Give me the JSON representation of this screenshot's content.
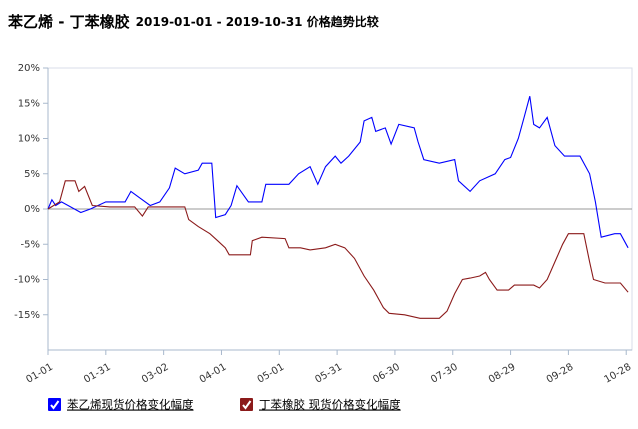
{
  "chart_data": {
    "type": "line",
    "title": "苯乙烯 - 丁苯橡胶",
    "subtitle": "2019-01-01 - 2019-10-31 价格趋势比较",
    "xlim": [
      "2019-01-01",
      "2019-10-31"
    ],
    "xticks": [
      {
        "value": "2019-01-01",
        "label": "01-01"
      },
      {
        "value": "2019-01-31",
        "label": "01-31"
      },
      {
        "value": "2019-03-02",
        "label": "03-02"
      },
      {
        "value": "2019-04-01",
        "label": "04-01"
      },
      {
        "value": "2019-05-01",
        "label": "05-01"
      },
      {
        "value": "2019-05-31",
        "label": "05-31"
      },
      {
        "value": "2019-06-30",
        "label": "06-30"
      },
      {
        "value": "2019-07-30",
        "label": "07-30"
      },
      {
        "value": "2019-08-29",
        "label": "08-29"
      },
      {
        "value": "2019-09-28",
        "label": "09-28"
      },
      {
        "value": "2019-10-28",
        "label": "10-28"
      }
    ],
    "ylim": [
      -20,
      20
    ],
    "yticks": [
      {
        "value": -15,
        "label": "-15%"
      },
      {
        "value": -10,
        "label": "-10%"
      },
      {
        "value": -5,
        "label": "-5%"
      },
      {
        "value": 0,
        "label": "0%"
      },
      {
        "value": 5,
        "label": "5%"
      },
      {
        "value": 10,
        "label": "10%"
      },
      {
        "value": 15,
        "label": "15%"
      },
      {
        "value": 20,
        "label": "20%"
      }
    ],
    "series": [
      {
        "name": "苯乙烯现货价格变化幅度",
        "color": "#0000ff",
        "x": [
          "2019-01-01",
          "2019-01-03",
          "2019-01-05",
          "2019-01-08",
          "2019-01-18",
          "2019-01-23",
          "2019-01-31",
          "2019-02-10",
          "2019-02-13",
          "2019-02-18",
          "2019-02-23",
          "2019-02-28",
          "2019-03-05",
          "2019-03-08",
          "2019-03-13",
          "2019-03-20",
          "2019-03-22",
          "2019-03-27",
          "2019-03-29",
          "2019-04-03",
          "2019-04-06",
          "2019-04-09",
          "2019-04-15",
          "2019-04-22",
          "2019-04-24",
          "2019-05-06",
          "2019-05-11",
          "2019-05-17",
          "2019-05-21",
          "2019-05-25",
          "2019-05-30",
          "2019-06-02",
          "2019-06-06",
          "2019-06-12",
          "2019-06-14",
          "2019-06-18",
          "2019-06-20",
          "2019-06-25",
          "2019-06-28",
          "2019-07-02",
          "2019-07-10",
          "2019-07-12",
          "2019-07-15",
          "2019-07-23",
          "2019-07-31",
          "2019-08-02",
          "2019-08-08",
          "2019-08-13",
          "2019-08-21",
          "2019-08-26",
          "2019-08-29",
          "2019-09-02",
          "2019-09-05",
          "2019-09-08",
          "2019-09-10",
          "2019-09-13",
          "2019-09-17",
          "2019-09-21",
          "2019-09-26",
          "2019-10-04",
          "2019-10-09",
          "2019-10-12",
          "2019-10-15",
          "2019-10-22",
          "2019-10-25",
          "2019-10-29"
        ],
        "values": [
          0,
          1.3,
          0.5,
          1.0,
          -0.5,
          0,
          1.0,
          1.0,
          2.5,
          1.5,
          0.5,
          1.0,
          3.0,
          5.8,
          5.0,
          5.5,
          6.5,
          6.5,
          -1.2,
          -0.8,
          0.5,
          3.3,
          1.0,
          1.0,
          3.5,
          3.5,
          5.0,
          6.0,
          3.5,
          6.0,
          7.5,
          6.5,
          7.5,
          9.5,
          12.5,
          13.0,
          11.0,
          11.5,
          9.2,
          12.0,
          11.5,
          9.5,
          7.0,
          6.5,
          7.0,
          4.0,
          2.5,
          4.0,
          5.0,
          7.0,
          7.3,
          10.0,
          13.0,
          16.0,
          12.0,
          11.5,
          13.0,
          9.0,
          7.5,
          7.5,
          5.0,
          1.0,
          -4.0,
          -3.5,
          -3.5,
          -5.5
        ]
      },
      {
        "name": "丁苯橡胶 现货价格变化幅度",
        "color": "#8b1a1a",
        "x": [
          "2019-01-01",
          "2019-01-07",
          "2019-01-10",
          "2019-01-15",
          "2019-01-17",
          "2019-01-20",
          "2019-01-24",
          "2019-02-02",
          "2019-02-15",
          "2019-02-19",
          "2019-02-22",
          "2019-03-13",
          "2019-03-15",
          "2019-03-20",
          "2019-03-26",
          "2019-03-30",
          "2019-04-03",
          "2019-04-05",
          "2019-04-16",
          "2019-04-17",
          "2019-04-22",
          "2019-05-04",
          "2019-05-06",
          "2019-05-12",
          "2019-05-17",
          "2019-05-25",
          "2019-05-30",
          "2019-06-04",
          "2019-06-09",
          "2019-06-14",
          "2019-06-19",
          "2019-06-24",
          "2019-06-27",
          "2019-07-05",
          "2019-07-13",
          "2019-07-18",
          "2019-07-23",
          "2019-07-27",
          "2019-07-31",
          "2019-08-04",
          "2019-08-08",
          "2019-08-13",
          "2019-08-16",
          "2019-08-18",
          "2019-08-22",
          "2019-08-28",
          "2019-08-31",
          "2019-09-10",
          "2019-09-13",
          "2019-09-17",
          "2019-09-21",
          "2019-09-25",
          "2019-09-28",
          "2019-10-06",
          "2019-10-09",
          "2019-10-11",
          "2019-10-17",
          "2019-10-25",
          "2019-10-29"
        ],
        "values": [
          0,
          1.0,
          4.0,
          4.0,
          2.5,
          3.2,
          0.5,
          0.3,
          0.3,
          -1.0,
          0.3,
          0.3,
          -1.5,
          -2.5,
          -3.5,
          -4.5,
          -5.5,
          -6.5,
          -6.5,
          -4.5,
          -4.0,
          -4.2,
          -5.5,
          -5.5,
          -5.8,
          -5.5,
          -5.0,
          -5.5,
          -7.0,
          -9.5,
          -11.5,
          -14.0,
          -14.8,
          -15.0,
          -15.5,
          -15.5,
          -15.5,
          -14.5,
          -12.0,
          -10.0,
          -9.8,
          -9.5,
          -9.0,
          -10.0,
          -11.5,
          -11.5,
          -10.8,
          -10.8,
          -11.2,
          -10.0,
          -7.5,
          -5.0,
          -3.5,
          -3.5,
          -7.5,
          -10.0,
          -10.5,
          -10.5,
          -11.8
        ]
      }
    ]
  }
}
